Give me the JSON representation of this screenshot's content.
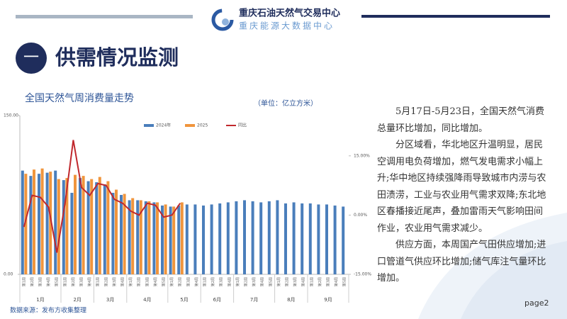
{
  "header": {
    "org": "重庆石油天然气交易中心",
    "sub_org": "重庆能源大数据中心"
  },
  "section": {
    "number": "一",
    "title": "供需情况监测"
  },
  "chart_data": {
    "type": "bar_line",
    "title": "全国天然气周消费量走势",
    "unit": "（单位：亿立方米）",
    "categories": [
      "第1周",
      "第2周",
      "第3周",
      "第4周",
      "第5周",
      "第1周",
      "第2周",
      "第3周",
      "第4周",
      "第1周",
      "第2周",
      "第3周",
      "第4周",
      "第1周",
      "第2周",
      "第3周",
      "第4周",
      "第5周",
      "第1周",
      "第2周",
      "第3周",
      "第4周",
      "第1周",
      "第2周",
      "第3周",
      "第4周",
      "第1周",
      "第2周",
      "第3周",
      "第4周",
      "第5周",
      "第1周",
      "第2周",
      "第3周",
      "第4周",
      "第1周",
      "第2周",
      "第3周",
      "第4周",
      "第5周"
    ],
    "month_groups": [
      {
        "name": "1月",
        "weeks": 5
      },
      {
        "name": "2月",
        "weeks": 4
      },
      {
        "name": "3月",
        "weeks": 4
      },
      {
        "name": "4月",
        "weeks": 5
      },
      {
        "name": "5月",
        "weeks": 4
      },
      {
        "name": "6月",
        "weeks": 4
      },
      {
        "name": "7月",
        "weeks": 5
      },
      {
        "name": "8月",
        "weeks": 4
      },
      {
        "name": "9月",
        "weeks": 5
      }
    ],
    "series": [
      {
        "name": "2024年",
        "color": "#4a7ebb",
        "values": [
          98,
          93,
          95,
          96,
          98,
          89,
          77,
          91,
          88,
          87,
          85,
          77,
          75,
          70,
          70,
          69,
          68,
          65,
          64,
          65,
          66,
          66,
          65,
          66,
          67,
          68,
          69,
          70,
          69,
          68,
          69,
          70,
          67,
          68,
          67,
          67,
          66,
          66,
          65,
          64
        ]
      },
      {
        "name": "2025",
        "color": "#f0953d",
        "values": [
          95,
          99,
          100,
          97,
          90,
          91,
          94,
          93,
          90,
          92,
          88,
          80,
          76,
          72,
          70,
          69,
          68,
          66,
          64,
          68,
          null,
          null,
          null,
          null,
          null,
          null,
          null,
          null,
          null,
          null,
          null,
          null,
          null,
          null,
          null,
          null,
          null,
          null,
          null,
          null
        ]
      },
      {
        "name": "同比",
        "color": "#c0282d",
        "axis": "y2",
        "values": [
          -3,
          5,
          4.5,
          2,
          -9.5,
          3,
          19,
          7,
          5,
          8,
          7.5,
          4,
          3,
          1,
          0,
          3,
          2.5,
          -0.5,
          0,
          3,
          null,
          null,
          null,
          null,
          null,
          null,
          null,
          null,
          null,
          null,
          null,
          null,
          null,
          null,
          null,
          null,
          null,
          null,
          null,
          null
        ]
      }
    ],
    "ylim": [
      0,
      150
    ],
    "yticks": [
      {
        "value": 0,
        "label": "0.00"
      },
      {
        "value": 150,
        "label": "150.00"
      }
    ],
    "y2lim": [
      -15,
      25.2
    ],
    "y2ticks": [
      {
        "value": -15,
        "label": "-15.00%"
      },
      {
        "value": 0,
        "label": "0.00%"
      },
      {
        "value": 15,
        "label": "15.00%"
      }
    ],
    "legend": "top"
  },
  "commentary": [
    "5月17日-5月23日，全国天然气消费总量环比增加，同比增加。",
    "分区域看，华北地区升温明显，居民空调用电负荷增加，燃气发电需求小幅上升;华中地区持续强降雨导致城市内涝与农田渍涝，工业与农业用气需求双降;东北地区春播接近尾声，叠加雷雨天气影响田间作业，农业用气需求减少。",
    "供应方面，本周国产气田供应增加;进口管道气供应环比增加;储气库注气量环比增加。"
  ],
  "source": "数据来源：发布方收集整理",
  "page": "page2"
}
